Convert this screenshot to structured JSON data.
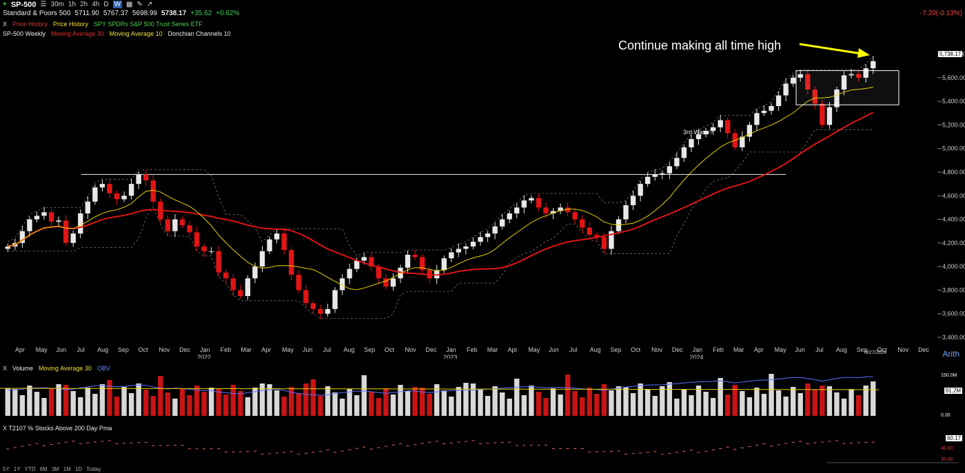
{
  "toolbar": {
    "symbol": "SP-500",
    "timeframes": [
      "30m",
      "1h",
      "2h",
      "4h",
      "D",
      "W"
    ],
    "active_timeframe": "W"
  },
  "quote": {
    "name": "Standard & Poors 500",
    "open": "5711.90",
    "high": "5767.37",
    "low": "5698.99",
    "close": "5738.17",
    "change": "+35.62",
    "change_pct": "+0.62%",
    "right_change": "-7.20(-0.13%)"
  },
  "studies": [
    "Price History",
    "Price History",
    "SPY SPDRs S&P 500 Trust Series ETF"
  ],
  "overlays": {
    "title": "SP-500 Weekly",
    "ma30": "Moving Average 30",
    "ma10": "Moving Average 10",
    "donchian": "Donchian Channels 10"
  },
  "annotation": "Continue making all time high",
  "wave_label": "3rd Wave?",
  "price_tag": "5,738.17",
  "scale_mode": "Arith",
  "date_badge": "9/27/2024",
  "volume_panel": {
    "title": "Volume",
    "ma": "Moving Average 30",
    "obv": "OBV",
    "tag": "91.2M",
    "ticks": [
      "150.0M",
      "0.00"
    ]
  },
  "breadth_panel": {
    "title": "T2107 % Stocks Above 200 Day Pma",
    "tag": "60.17",
    "ticks": [
      "40.00",
      "20.00"
    ]
  },
  "ranges": [
    "5Y",
    "1Y",
    "YTD",
    "6M",
    "3M",
    "1M",
    "1D",
    "Today"
  ],
  "colors": {
    "up": "#e8e8e8",
    "down": "#e01515",
    "ma30": "#e01515",
    "ma10": "#e8d400",
    "obv": "#6070ff",
    "accent": "#2a5fb0"
  },
  "chart_data": {
    "type": "candlestick",
    "y_axis_ticks": [
      "5,800.00",
      "5,600.00",
      "5,400.00",
      "5,200.00",
      "5,000.00",
      "4,800.00",
      "4,600.00",
      "4,400.00",
      "4,200.00",
      "4,000.00",
      "3,800.00",
      "3,600.00",
      "3,400.00"
    ],
    "x_axis_months": [
      "Apr",
      "May",
      "Jun",
      "Jul",
      "Aug",
      "Sep",
      "Oct",
      "Nov",
      "Dec",
      "Jan",
      "Feb",
      "Mar",
      "Apr",
      "May",
      "Jun",
      "Jul",
      "Aug",
      "Sep",
      "Oct",
      "Nov",
      "Dec",
      "Jan",
      "Feb",
      "Mar",
      "Apr",
      "May",
      "Jun",
      "Jul",
      "Aug",
      "Sep",
      "Oct",
      "Nov",
      "Dec",
      "Jan",
      "Feb",
      "Mar",
      "Apr",
      "May",
      "Jun",
      "Jul",
      "Aug",
      "Sep",
      "Oct",
      "Nov",
      "Dec"
    ],
    "x_axis_years": [
      "2022",
      "2023",
      "2024"
    ],
    "ylim": [
      3400,
      5850
    ],
    "horizontal_line": 4780,
    "weekly_close_path": [
      4170,
      4200,
      4300,
      4400,
      4430,
      4460,
      4380,
      4390,
      4200,
      4280,
      4450,
      4550,
      4670,
      4700,
      4620,
      4570,
      4600,
      4700,
      4780,
      4730,
      4550,
      4400,
      4300,
      4400,
      4350,
      4290,
      4170,
      4130,
      4130,
      3950,
      3900,
      3800,
      3750,
      3900,
      4000,
      4130,
      4230,
      4280,
      4140,
      3930,
      3800,
      3690,
      3640,
      3600,
      3640,
      3800,
      3900,
      3980,
      4050,
      4080,
      4000,
      3900,
      3830,
      3900,
      3990,
      4100,
      4080,
      3970,
      3900,
      3970,
      4070,
      4120,
      4150,
      4170,
      4210,
      4250,
      4280,
      4340,
      4400,
      4450,
      4500,
      4560,
      4580,
      4500,
      4450,
      4470,
      4500,
      4460,
      4400,
      4330,
      4270,
      4250,
      4150,
      4300,
      4400,
      4520,
      4600,
      4700,
      4760,
      4780,
      4790,
      4850,
      4920,
      5010,
      5080,
      5120,
      5150,
      5180,
      5240,
      5130,
      5010,
      5100,
      5200,
      5300,
      5320,
      5360,
      5450,
      5550,
      5600,
      5630,
      5500,
      5380,
      5200,
      5350,
      5500,
      5620,
      5630,
      5600,
      5680,
      5740
    ],
    "annotation_box_price_range": [
      5370,
      5660
    ],
    "value_label": "5,738.17"
  }
}
